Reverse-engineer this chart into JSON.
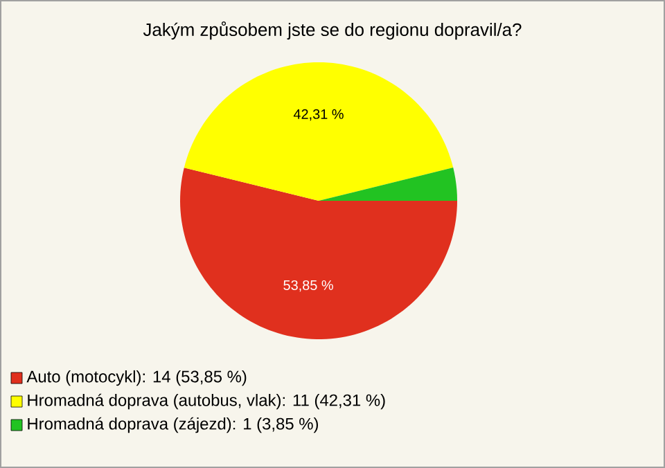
{
  "chart_data": {
    "type": "pie",
    "title": "Jakým způsobem jste se do regionu dopravil/a?",
    "categories": [
      "Auto (motocykl): 14 (53,85 %)",
      "Hromadná doprava (autobus, vlak): 11 (42,31 %)",
      "Hromadná doprava (zájezd): 1 (3,85 %)"
    ],
    "values": [
      53.85,
      42.31,
      3.85
    ],
    "colors": [
      "#e0301e",
      "#ffff00",
      "#22c322"
    ],
    "value_labels": [
      "53,85 %",
      "42,31 %",
      null
    ],
    "legend": "bottom left"
  }
}
